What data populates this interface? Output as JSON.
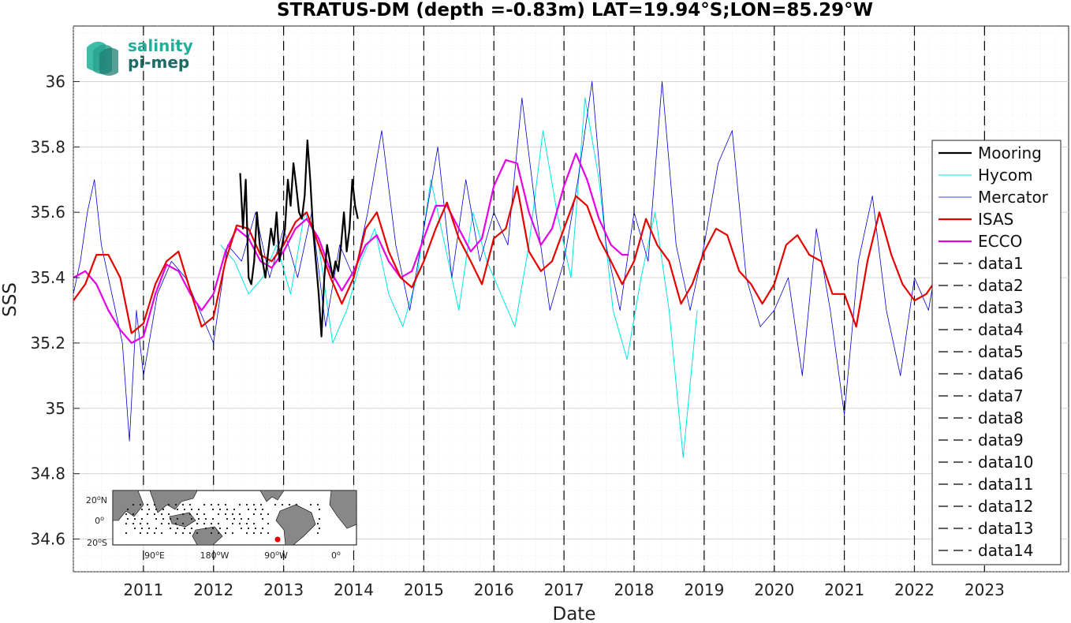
{
  "chart_data": {
    "type": "line",
    "title": "STRATUS-DM (depth =-0.83m) LAT=19.94°S;LON=85.29°W",
    "xlabel": "Date",
    "ylabel": "SSS",
    "xlim": [
      2010.0,
      2024.2
    ],
    "ylim": [
      34.5,
      36.17
    ],
    "x_ticks": [
      2011,
      2012,
      2013,
      2014,
      2015,
      2016,
      2017,
      2018,
      2019,
      2020,
      2021,
      2022,
      2023
    ],
    "y_ticks": [
      34.6,
      34.8,
      35,
      35.2,
      35.4,
      35.6,
      35.8,
      36
    ],
    "y_tick_labels": [
      "34.6",
      "34.8",
      "35",
      "35.2",
      "35.4",
      "35.6",
      "35.8",
      "36"
    ],
    "grid": true,
    "legend_position": "right",
    "vertical_markers": [
      2011.0,
      2012.0,
      2013.0,
      2014.0,
      2015.0,
      2016.0,
      2017.0,
      2018.0,
      2019.0,
      2020.0,
      2021.0,
      2022.0,
      2023.0
    ],
    "series": [
      {
        "name": "Mooring",
        "color": "#000000",
        "width": 2.2,
        "x": [
          2012.38,
          2012.42,
          2012.46,
          2012.5,
          2012.54,
          2012.58,
          2012.62,
          2012.66,
          2012.7,
          2012.74,
          2012.78,
          2012.82,
          2012.86,
          2012.9,
          2012.94,
          2012.98,
          2013.02,
          2013.06,
          2013.1,
          2013.14,
          2013.18,
          2013.22,
          2013.26,
          2013.3,
          2013.34,
          2013.38,
          2013.42,
          2013.46,
          2013.5,
          2013.54,
          2013.58,
          2013.62,
          2013.66,
          2013.7,
          2013.74,
          2013.78,
          2013.82,
          2013.86,
          2013.9,
          2013.94,
          2013.98,
          2014.02,
          2014.06
        ],
        "values": [
          35.72,
          35.55,
          35.7,
          35.4,
          35.38,
          35.45,
          35.6,
          35.5,
          35.45,
          35.4,
          35.48,
          35.55,
          35.5,
          35.6,
          35.45,
          35.5,
          35.55,
          35.7,
          35.62,
          35.75,
          35.68,
          35.6,
          35.58,
          35.65,
          35.82,
          35.7,
          35.55,
          35.45,
          35.35,
          35.22,
          35.4,
          35.5,
          35.45,
          35.4,
          35.45,
          35.42,
          35.5,
          35.6,
          35.48,
          35.55,
          35.7,
          35.62,
          35.58
        ]
      },
      {
        "name": "Hycom",
        "color": "#00e5e5",
        "width": 1,
        "x": [
          2012.1,
          2012.3,
          2012.5,
          2012.7,
          2012.9,
          2013.1,
          2013.3,
          2013.5,
          2013.7,
          2013.9,
          2014.1,
          2014.3,
          2014.5,
          2014.7,
          2014.9,
          2015.1,
          2015.3,
          2015.5,
          2015.7,
          2015.9,
          2016.1,
          2016.3,
          2016.5,
          2016.7,
          2016.9,
          2017.1,
          2017.3,
          2017.5,
          2017.7,
          2017.9,
          2018.1,
          2018.3,
          2018.5,
          2018.7,
          2018.9
        ],
        "values": [
          35.5,
          35.45,
          35.35,
          35.4,
          35.5,
          35.35,
          35.6,
          35.5,
          35.2,
          35.3,
          35.45,
          35.55,
          35.35,
          35.25,
          35.4,
          35.7,
          35.5,
          35.3,
          35.6,
          35.45,
          35.35,
          35.25,
          35.5,
          35.85,
          35.6,
          35.4,
          35.95,
          35.7,
          35.3,
          35.15,
          35.4,
          35.6,
          35.3,
          34.85,
          35.3
        ]
      },
      {
        "name": "Mercator",
        "color": "#0000cc",
        "width": 0.8,
        "x": [
          2010.0,
          2010.1,
          2010.2,
          2010.3,
          2010.4,
          2010.5,
          2010.6,
          2010.7,
          2010.8,
          2010.9,
          2011.0,
          2011.2,
          2011.4,
          2011.6,
          2011.8,
          2012.0,
          2012.2,
          2012.4,
          2012.6,
          2012.8,
          2013.0,
          2013.2,
          2013.4,
          2013.6,
          2013.8,
          2014.0,
          2014.2,
          2014.4,
          2014.6,
          2014.8,
          2015.0,
          2015.2,
          2015.4,
          2015.6,
          2015.8,
          2016.0,
          2016.2,
          2016.4,
          2016.6,
          2016.8,
          2017.0,
          2017.2,
          2017.4,
          2017.6,
          2017.8,
          2018.0,
          2018.2,
          2018.4,
          2018.6,
          2018.8,
          2019.0,
          2019.2,
          2019.4,
          2019.6,
          2019.8,
          2020.0,
          2020.2,
          2020.4,
          2020.6,
          2020.8,
          2021.0,
          2021.2,
          2021.4,
          2021.6,
          2021.8,
          2022.0,
          2022.2,
          2022.4
        ],
        "values": [
          35.35,
          35.45,
          35.6,
          35.7,
          35.5,
          35.4,
          35.3,
          35.2,
          34.9,
          35.3,
          35.1,
          35.35,
          35.45,
          35.4,
          35.3,
          35.2,
          35.5,
          35.45,
          35.6,
          35.4,
          35.55,
          35.4,
          35.6,
          35.25,
          35.5,
          35.4,
          35.6,
          35.85,
          35.5,
          35.3,
          35.55,
          35.8,
          35.4,
          35.7,
          35.45,
          35.6,
          35.5,
          35.95,
          35.6,
          35.3,
          35.45,
          35.7,
          36.0,
          35.5,
          35.3,
          35.6,
          35.45,
          36.0,
          35.5,
          35.3,
          35.5,
          35.75,
          35.85,
          35.4,
          35.25,
          35.3,
          35.4,
          35.1,
          35.55,
          35.3,
          34.98,
          35.45,
          35.65,
          35.3,
          35.1,
          35.4,
          35.3,
          35.55
        ]
      },
      {
        "name": "ISAS",
        "color": "#e60000",
        "width": 2.2,
        "x": [
          2010.0,
          2010.17,
          2010.33,
          2010.5,
          2010.67,
          2010.83,
          2011.0,
          2011.17,
          2011.33,
          2011.5,
          2011.67,
          2011.83,
          2012.0,
          2012.17,
          2012.33,
          2012.5,
          2012.67,
          2012.83,
          2013.0,
          2013.17,
          2013.33,
          2013.5,
          2013.67,
          2013.83,
          2014.0,
          2014.17,
          2014.33,
          2014.5,
          2014.67,
          2014.83,
          2015.0,
          2015.17,
          2015.33,
          2015.5,
          2015.67,
          2015.83,
          2016.0,
          2016.17,
          2016.33,
          2016.5,
          2016.67,
          2016.83,
          2017.0,
          2017.17,
          2017.33,
          2017.5,
          2017.67,
          2017.83,
          2018.0,
          2018.17,
          2018.33,
          2018.5,
          2018.67,
          2018.83,
          2019.0,
          2019.17,
          2019.33,
          2019.5,
          2019.67,
          2019.83,
          2020.0,
          2020.17,
          2020.33,
          2020.5,
          2020.67,
          2020.83,
          2021.0,
          2021.17,
          2021.33,
          2021.5,
          2021.67,
          2021.83,
          2022.0,
          2022.17,
          2022.33,
          2022.5
        ],
        "values": [
          35.33,
          35.38,
          35.47,
          35.47,
          35.4,
          35.23,
          35.26,
          35.38,
          35.45,
          35.48,
          35.36,
          35.25,
          35.28,
          35.45,
          35.56,
          35.55,
          35.47,
          35.45,
          35.5,
          35.57,
          35.6,
          35.5,
          35.4,
          35.32,
          35.4,
          35.55,
          35.6,
          35.48,
          35.4,
          35.37,
          35.45,
          35.55,
          35.63,
          35.52,
          35.45,
          35.38,
          35.52,
          35.55,
          35.68,
          35.48,
          35.42,
          35.45,
          35.55,
          35.65,
          35.62,
          35.52,
          35.45,
          35.38,
          35.45,
          35.58,
          35.5,
          35.45,
          35.32,
          35.38,
          35.48,
          35.55,
          35.53,
          35.42,
          35.38,
          35.32,
          35.38,
          35.5,
          35.53,
          35.47,
          35.45,
          35.35,
          35.35,
          35.25,
          35.45,
          35.6,
          35.47,
          35.38,
          35.33,
          35.35,
          35.4,
          35.35
        ]
      },
      {
        "name": "ECCO",
        "color": "#e600e6",
        "width": 2.2,
        "x": [
          2010.0,
          2010.17,
          2010.33,
          2010.5,
          2010.67,
          2010.83,
          2011.0,
          2011.17,
          2011.33,
          2011.5,
          2011.67,
          2011.83,
          2012.0,
          2012.17,
          2012.33,
          2012.5,
          2012.67,
          2012.83,
          2013.0,
          2013.17,
          2013.33,
          2013.5,
          2013.67,
          2013.83,
          2014.0,
          2014.17,
          2014.33,
          2014.5,
          2014.67,
          2014.83,
          2015.0,
          2015.17,
          2015.33,
          2015.5,
          2015.67,
          2015.83,
          2016.0,
          2016.17,
          2016.33,
          2016.5,
          2016.67,
          2016.83,
          2017.0,
          2017.17,
          2017.33,
          2017.5,
          2017.67,
          2017.83,
          2017.92
        ],
        "values": [
          35.4,
          35.42,
          35.38,
          35.3,
          35.24,
          35.2,
          35.22,
          35.35,
          35.44,
          35.42,
          35.35,
          35.3,
          35.35,
          35.48,
          35.55,
          35.52,
          35.45,
          35.43,
          35.48,
          35.55,
          35.58,
          35.52,
          35.42,
          35.36,
          35.42,
          35.5,
          35.53,
          35.45,
          35.4,
          35.42,
          35.52,
          35.62,
          35.62,
          35.55,
          35.48,
          35.52,
          35.68,
          35.76,
          35.75,
          35.6,
          35.5,
          35.55,
          35.68,
          35.78,
          35.7,
          35.58,
          35.5,
          35.47,
          35.47
        ]
      }
    ],
    "dashed_series": [
      "data1",
      "data2",
      "data3",
      "data4",
      "data5",
      "data6",
      "data7",
      "data8",
      "data9",
      "data10",
      "data11",
      "data12",
      "data13",
      "data14"
    ]
  },
  "logo": {
    "line1": "salinity",
    "line2": "pi-mep",
    "color1": "#20b09a",
    "color2": "#1e6b66"
  },
  "inset_map": {
    "lat_labels": [
      "20",
      "0",
      "20"
    ],
    "lat_suffix": [
      "N",
      "",
      "S"
    ],
    "lon_labels": [
      "90",
      "180",
      "90",
      "0"
    ],
    "lon_suffix": [
      "E",
      "W",
      "W",
      ""
    ],
    "marker_color": "#e60000"
  }
}
